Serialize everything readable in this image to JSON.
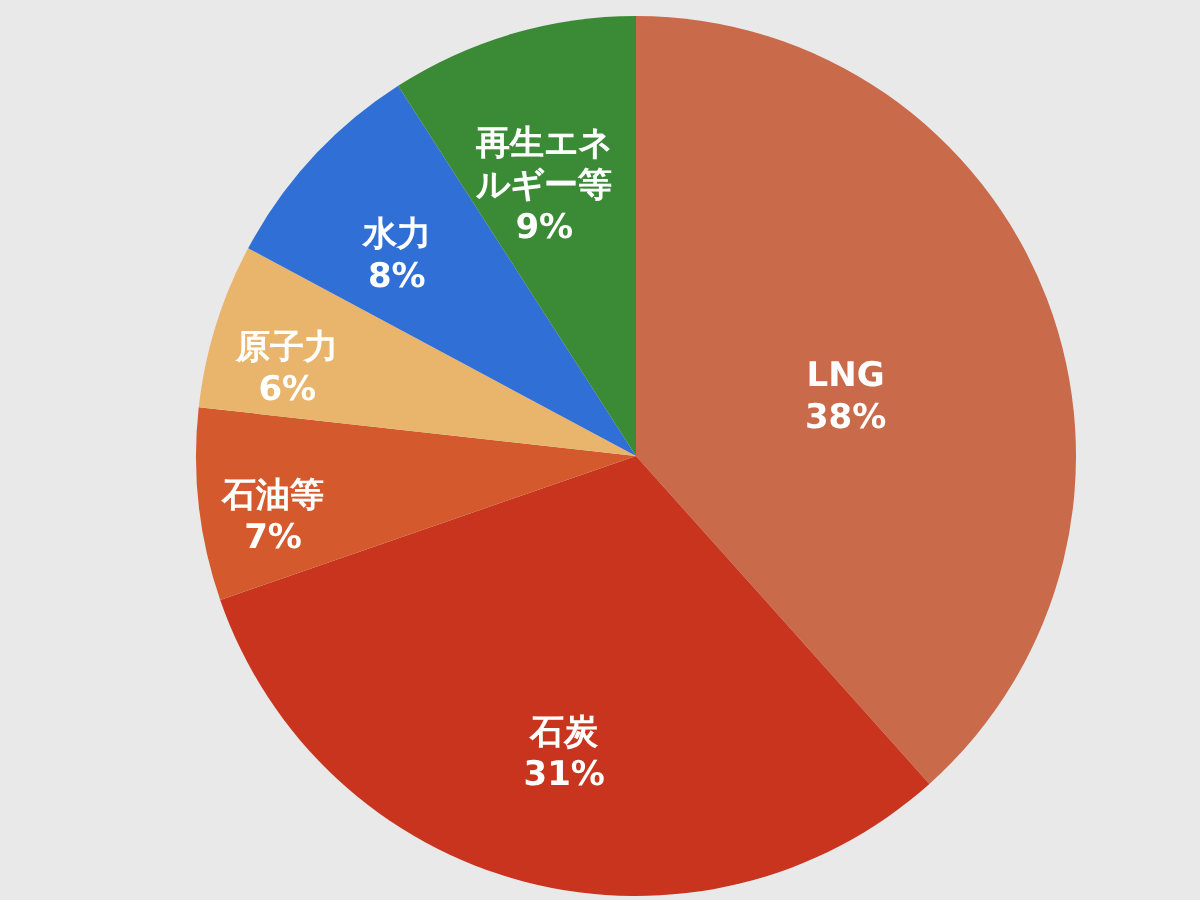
{
  "chart_data": {
    "type": "pie",
    "categories": [
      "LNG",
      "石炭",
      "石油等",
      "原子力",
      "水力",
      "再生エネルギー等"
    ],
    "values": [
      38,
      31,
      7,
      6,
      8,
      9
    ],
    "value_labels": [
      "38%",
      "31%",
      "7%",
      "6%",
      "8%",
      "9%"
    ],
    "colors": [
      "#c96a4a",
      "#c9341f",
      "#d45a2d",
      "#e9b56d",
      "#2f6fd6",
      "#3a8a36"
    ]
  }
}
